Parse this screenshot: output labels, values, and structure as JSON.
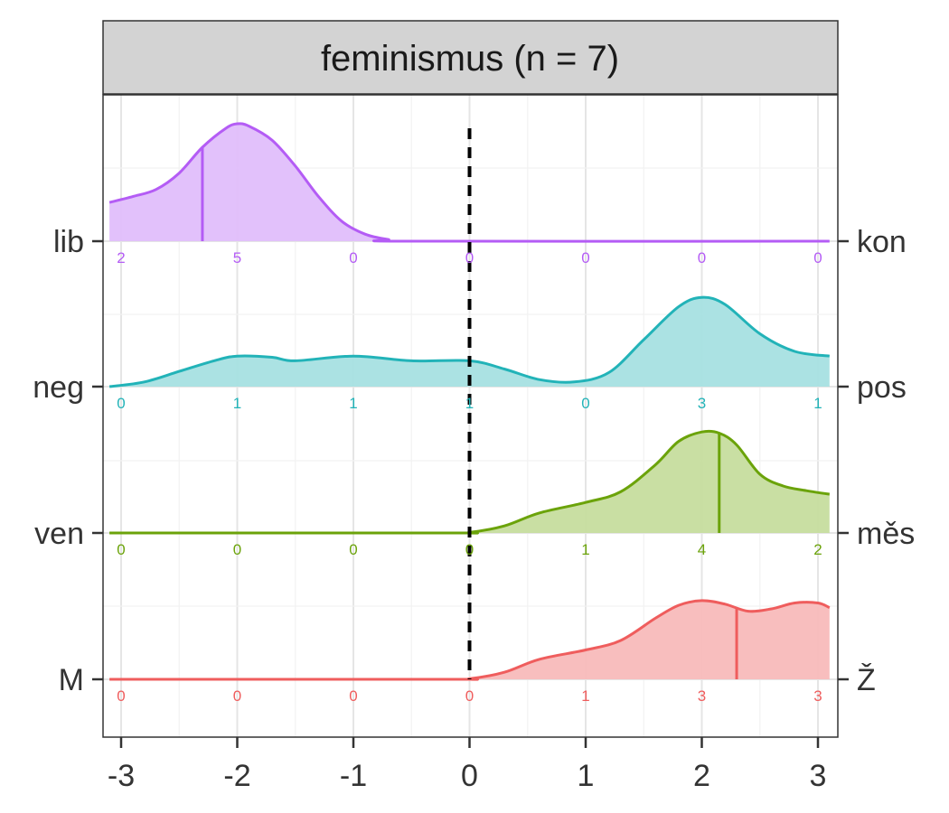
{
  "chart_data": {
    "type": "ridgeline density",
    "title": "feminismus (n = 7)",
    "xlim": [
      -3.1,
      3.1
    ],
    "x_ticks": [
      -3,
      -2,
      -1,
      0,
      1,
      2,
      3
    ],
    "x_tick_labels": [
      "-3",
      "-2",
      "-1",
      "0",
      "1",
      "2",
      "3"
    ],
    "reference_line": {
      "x": 0,
      "style": "dashed",
      "color": "#000000"
    },
    "grid": true,
    "series": [
      {
        "left_label": "lib",
        "right_label": "kon",
        "color": "#B45CF5",
        "fill": "#E0BEFB",
        "counts": [
          2,
          5,
          0,
          0,
          0,
          0,
          0
        ],
        "mean": -2.3,
        "density": [
          [
            -3.1,
            0.33
          ],
          [
            -2.9,
            0.38
          ],
          [
            -2.7,
            0.44
          ],
          [
            -2.5,
            0.58
          ],
          [
            -2.3,
            0.8
          ],
          [
            -2.1,
            0.96
          ],
          [
            -2.0,
            1.0
          ],
          [
            -1.9,
            0.98
          ],
          [
            -1.7,
            0.86
          ],
          [
            -1.5,
            0.64
          ],
          [
            -1.3,
            0.38
          ],
          [
            -1.1,
            0.17
          ],
          [
            -0.9,
            0.06
          ],
          [
            -0.7,
            0.015
          ],
          [
            -0.5,
            0.0
          ],
          [
            3.1,
            0.0
          ]
        ]
      },
      {
        "left_label": "neg",
        "right_label": "pos",
        "color": "#22B3B8",
        "fill": "#A6E0E2",
        "counts": [
          0,
          1,
          1,
          1,
          0,
          3,
          1
        ],
        "density": [
          [
            -3.1,
            0.0
          ],
          [
            -2.8,
            0.04
          ],
          [
            -2.5,
            0.13
          ],
          [
            -2.2,
            0.22
          ],
          [
            -2.0,
            0.26
          ],
          [
            -1.7,
            0.25
          ],
          [
            -1.5,
            0.22
          ],
          [
            -1.0,
            0.26
          ],
          [
            -0.5,
            0.22
          ],
          [
            0.0,
            0.22
          ],
          [
            0.3,
            0.15
          ],
          [
            0.6,
            0.06
          ],
          [
            0.9,
            0.04
          ],
          [
            1.2,
            0.12
          ],
          [
            1.5,
            0.4
          ],
          [
            1.8,
            0.68
          ],
          [
            2.0,
            0.76
          ],
          [
            2.2,
            0.7
          ],
          [
            2.5,
            0.45
          ],
          [
            2.8,
            0.3
          ],
          [
            3.1,
            0.26
          ]
        ]
      },
      {
        "left_label": "ven",
        "right_label": "měs",
        "color": "#6BA30A",
        "fill": "#C6DD9E",
        "counts": [
          0,
          0,
          0,
          0,
          1,
          4,
          2
        ],
        "mean": 2.15,
        "density": [
          [
            -3.1,
            0.0
          ],
          [
            -0.2,
            0.0
          ],
          [
            0.0,
            0.005
          ],
          [
            0.3,
            0.06
          ],
          [
            0.6,
            0.17
          ],
          [
            1.0,
            0.26
          ],
          [
            1.3,
            0.35
          ],
          [
            1.6,
            0.58
          ],
          [
            1.8,
            0.78
          ],
          [
            2.0,
            0.86
          ],
          [
            2.15,
            0.85
          ],
          [
            2.3,
            0.75
          ],
          [
            2.5,
            0.5
          ],
          [
            2.7,
            0.4
          ],
          [
            2.9,
            0.36
          ],
          [
            3.1,
            0.33
          ]
        ]
      },
      {
        "left_label": "M",
        "right_label": "Ž",
        "color": "#EF5D5D",
        "fill": "#F8BBBB",
        "counts": [
          0,
          0,
          0,
          0,
          1,
          3,
          3
        ],
        "mean": 2.3,
        "density": [
          [
            -3.1,
            0.0
          ],
          [
            -0.2,
            0.0
          ],
          [
            0.0,
            0.005
          ],
          [
            0.3,
            0.06
          ],
          [
            0.6,
            0.17
          ],
          [
            1.0,
            0.25
          ],
          [
            1.3,
            0.33
          ],
          [
            1.6,
            0.52
          ],
          [
            1.8,
            0.63
          ],
          [
            2.0,
            0.67
          ],
          [
            2.2,
            0.64
          ],
          [
            2.4,
            0.58
          ],
          [
            2.6,
            0.6
          ],
          [
            2.8,
            0.65
          ],
          [
            3.0,
            0.65
          ],
          [
            3.1,
            0.61
          ]
        ]
      }
    ]
  }
}
